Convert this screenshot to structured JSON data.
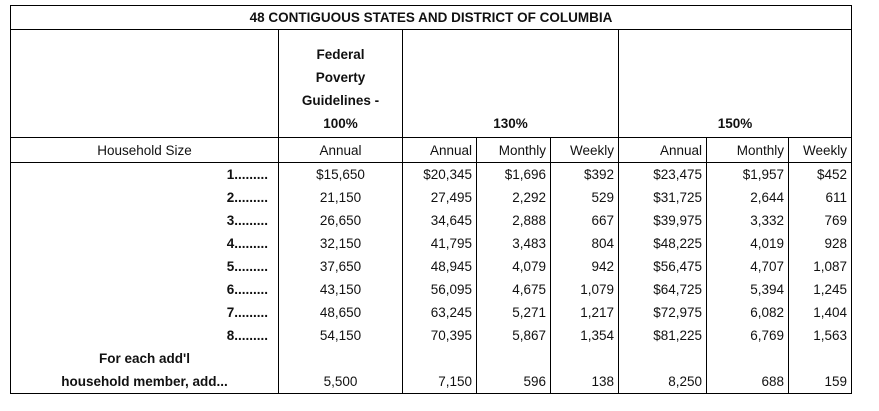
{
  "table": {
    "title": "48 CONTIGUOUS STATES AND DISTRICT OF COLUMBIA",
    "fpg_header_lines": [
      "Federal",
      "Poverty",
      "Guidelines -",
      "100%"
    ],
    "group_headers": [
      "130%",
      "150%"
    ],
    "subheaders": {
      "household_size": "Household Size",
      "fpg": "Annual",
      "p130": [
        "Annual",
        "Monthly",
        "Weekly"
      ],
      "p150": [
        "Annual",
        "Monthly",
        "Weekly"
      ]
    },
    "rows": [
      {
        "size": "1.........",
        "fpg": "$15,650",
        "p130": [
          "$20,345",
          "$1,696",
          "$392"
        ],
        "p150": [
          "$23,475",
          "$1,957",
          "$452"
        ]
      },
      {
        "size": "2.........",
        "fpg": "21,150",
        "p130": [
          "27,495",
          "2,292",
          "529"
        ],
        "p150": [
          "$31,725",
          "2,644",
          "611"
        ]
      },
      {
        "size": "3.........",
        "fpg": "26,650",
        "p130": [
          "34,645",
          "2,888",
          "667"
        ],
        "p150": [
          "$39,975",
          "3,332",
          "769"
        ]
      },
      {
        "size": "4.........",
        "fpg": "32,150",
        "p130": [
          "41,795",
          "3,483",
          "804"
        ],
        "p150": [
          "$48,225",
          "4,019",
          "928"
        ]
      },
      {
        "size": "5.........",
        "fpg": "37,650",
        "p130": [
          "48,945",
          "4,079",
          "942"
        ],
        "p150": [
          "$56,475",
          "4,707",
          "1,087"
        ]
      },
      {
        "size": "6.........",
        "fpg": "43,150",
        "p130": [
          "56,095",
          "4,675",
          "1,079"
        ],
        "p150": [
          "$64,725",
          "5,394",
          "1,245"
        ]
      },
      {
        "size": "7.........",
        "fpg": "48,650",
        "p130": [
          "63,245",
          "5,271",
          "1,217"
        ],
        "p150": [
          "$72,975",
          "6,082",
          "1,404"
        ]
      },
      {
        "size": "8.........",
        "fpg": "54,150",
        "p130": [
          "70,395",
          "5,867",
          "1,354"
        ],
        "p150": [
          "$81,225",
          "6,769",
          "1,563"
        ]
      }
    ],
    "additional": {
      "label_lines": [
        "For each add'l",
        "household member, add..."
      ],
      "fpg": "5,500",
      "p130": [
        "7,150",
        "596",
        "138"
      ],
      "p150": [
        "8,250",
        "688",
        "159"
      ]
    }
  }
}
